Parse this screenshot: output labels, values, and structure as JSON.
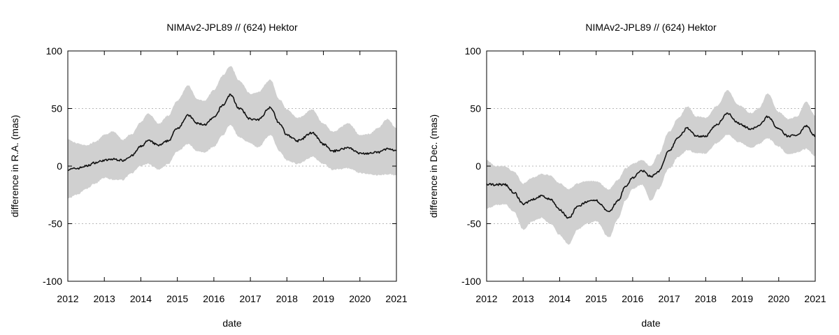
{
  "chart_data": [
    {
      "type": "area",
      "title": "NIMAv2-JPL89 // (624) Hektor",
      "xlabel": "date",
      "ylabel": "difference in R.A. (mas)",
      "xlim": [
        2012,
        2021
      ],
      "ylim": [
        -100,
        100
      ],
      "xticks": [
        "2012",
        "2013",
        "2014",
        "2015",
        "2016",
        "2017",
        "2018",
        "2019",
        "2020",
        "2021"
      ],
      "yticks": [
        "100",
        "50",
        "0",
        "-50",
        "-100"
      ],
      "grid": "horizontal dotted",
      "band_color": "#d0d0d0",
      "line_color": "#111111",
      "series": [
        {
          "x": [
            2012.0,
            2012.25,
            2012.5,
            2012.75,
            2013.0,
            2013.25,
            2013.5,
            2013.75,
            2014.0,
            2014.2,
            2014.5,
            2014.75,
            2015.0,
            2015.3,
            2015.55,
            2015.75,
            2016.0,
            2016.25,
            2016.45,
            2016.7,
            2017.0,
            2017.2,
            2017.55,
            2017.8,
            2018.0,
            2018.3,
            2018.7,
            2019.0,
            2019.25,
            2019.7,
            2020.0,
            2020.25,
            2020.5,
            2020.75,
            2021.0
          ],
          "y": [
            -3,
            -2,
            0,
            3,
            5,
            6,
            5,
            9,
            17,
            22,
            18,
            22,
            33,
            44,
            37,
            36,
            42,
            53,
            62,
            50,
            41,
            40,
            51,
            37,
            27,
            22,
            29,
            19,
            13,
            16,
            11,
            11,
            12,
            15,
            13
          ],
          "band_lower": [
            -28,
            -25,
            -20,
            -15,
            -10,
            -12,
            -12,
            -6,
            0,
            2,
            -3,
            2,
            13,
            19,
            13,
            12,
            17,
            27,
            36,
            25,
            20,
            16,
            27,
            13,
            5,
            2,
            8,
            2,
            -3,
            -2,
            -6,
            -7,
            -8,
            -7,
            -8
          ],
          "band_upper": [
            23,
            20,
            18,
            21,
            27,
            30,
            23,
            28,
            38,
            46,
            37,
            44,
            57,
            70,
            58,
            57,
            66,
            79,
            87,
            74,
            63,
            64,
            75,
            58,
            49,
            42,
            49,
            37,
            30,
            37,
            27,
            28,
            33,
            41,
            33
          ]
        }
      ]
    },
    {
      "type": "area",
      "title": "NIMAv2-JPL89 // (624) Hektor",
      "xlabel": "date",
      "ylabel": "difference in Dec. (mas)",
      "xlim": [
        2012,
        2021
      ],
      "ylim": [
        -100,
        100
      ],
      "xticks": [
        "2012",
        "2013",
        "2014",
        "2015",
        "2016",
        "2017",
        "2018",
        "2019",
        "2020",
        "2021"
      ],
      "yticks": [
        "100",
        "50",
        "0",
        "-50",
        "-100"
      ],
      "grid": "horizontal dotted",
      "band_color": "#d0d0d0",
      "line_color": "#111111",
      "series": [
        {
          "x": [
            2012.0,
            2012.25,
            2012.5,
            2012.75,
            2013.0,
            2013.25,
            2013.5,
            2013.75,
            2014.0,
            2014.25,
            2014.5,
            2014.75,
            2015.0,
            2015.35,
            2015.6,
            2015.8,
            2016.0,
            2016.25,
            2016.5,
            2016.7,
            2017.0,
            2017.25,
            2017.5,
            2017.75,
            2018.0,
            2018.3,
            2018.6,
            2018.9,
            2019.25,
            2019.45,
            2019.7,
            2020.0,
            2020.25,
            2020.5,
            2020.75,
            2021.0
          ],
          "y": [
            -16,
            -16,
            -16,
            -23,
            -33,
            -29,
            -26,
            -29,
            -38,
            -45,
            -35,
            -31,
            -30,
            -40,
            -30,
            -18,
            -10,
            -4,
            -9,
            -5,
            13,
            25,
            33,
            26,
            26,
            36,
            46,
            37,
            32,
            35,
            43,
            32,
            26,
            27,
            35,
            26
          ],
          "band_lower": [
            -37,
            -34,
            -33,
            -40,
            -55,
            -48,
            -45,
            -50,
            -60,
            -68,
            -55,
            -50,
            -48,
            -62,
            -46,
            -30,
            -20,
            -16,
            -30,
            -20,
            -2,
            8,
            14,
            11,
            11,
            20,
            27,
            21,
            16,
            19,
            24,
            17,
            10,
            12,
            15,
            9
          ],
          "band_upper": [
            5,
            0,
            0,
            -5,
            -15,
            -10,
            -7,
            -8,
            -15,
            -20,
            -15,
            -13,
            -13,
            -20,
            -12,
            -2,
            2,
            5,
            0,
            10,
            30,
            42,
            52,
            43,
            42,
            52,
            66,
            53,
            46,
            50,
            63,
            47,
            41,
            43,
            56,
            44
          ]
        }
      ]
    }
  ]
}
